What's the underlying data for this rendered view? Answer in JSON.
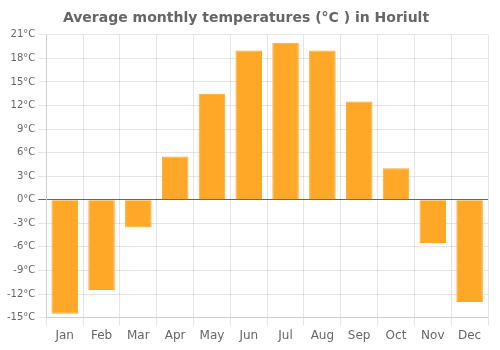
{
  "chart_data": {
    "type": "bar",
    "title": "Average monthly temperatures (°C ) in Horiult",
    "categories": [
      "Jan",
      "Feb",
      "Mar",
      "Apr",
      "May",
      "Jun",
      "Jul",
      "Aug",
      "Sep",
      "Oct",
      "Nov",
      "Dec"
    ],
    "values": [
      -14.5,
      -11.5,
      -3.5,
      5.5,
      13.5,
      19.0,
      20.0,
      19.0,
      12.5,
      4.0,
      -5.5,
      -13.0
    ],
    "color": "#FFA726",
    "ylim": [
      -15,
      21
    ],
    "yticks": [
      {
        "value": -15,
        "label": "-15°C"
      },
      {
        "value": -12,
        "label": "-12°C"
      },
      {
        "value": -9,
        "label": "-9°C"
      },
      {
        "value": -6,
        "label": "-6°C"
      },
      {
        "value": -3,
        "label": "-3°C"
      },
      {
        "value": 0,
        "label": "0°C"
      },
      {
        "value": 3,
        "label": "3°C"
      },
      {
        "value": 6,
        "label": "6°C"
      },
      {
        "value": 9,
        "label": "9°C"
      },
      {
        "value": 12,
        "label": "12°C"
      },
      {
        "value": 15,
        "label": "15°C"
      },
      {
        "value": 18,
        "label": "18°C"
      },
      {
        "value": 21,
        "label": "21°C"
      }
    ],
    "grid": true
  }
}
